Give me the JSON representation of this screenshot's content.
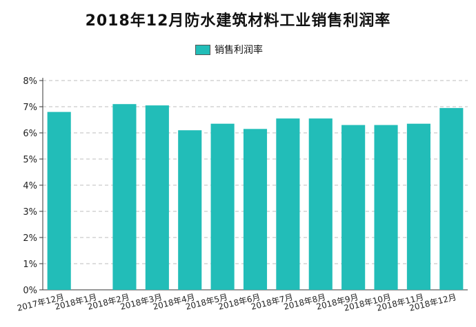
{
  "chart_data": {
    "type": "bar",
    "title": "2018年12月防水建筑材料工业销售利润率",
    "legend_position": "top",
    "series": [
      {
        "name": "销售利润率",
        "color": "#22bdb8",
        "values": [
          6.8,
          0,
          7.1,
          7.05,
          6.1,
          6.35,
          6.15,
          6.55,
          6.55,
          6.3,
          6.3,
          6.35,
          6.95
        ]
      }
    ],
    "categories": [
      "2017年12月",
      "2018年1月",
      "2018年2月",
      "2018年3月",
      "2018年4月",
      "2018年5月",
      "2018年6月",
      "2018年7月",
      "2018年8月",
      "2018年9月",
      "2018年10月",
      "2018年11月",
      "2018年12月"
    ],
    "yticks": [
      "0%",
      "1%",
      "2%",
      "3%",
      "4%",
      "5%",
      "6%",
      "7%",
      "8%"
    ],
    "ylim": [
      0,
      8
    ],
    "grid": true
  }
}
